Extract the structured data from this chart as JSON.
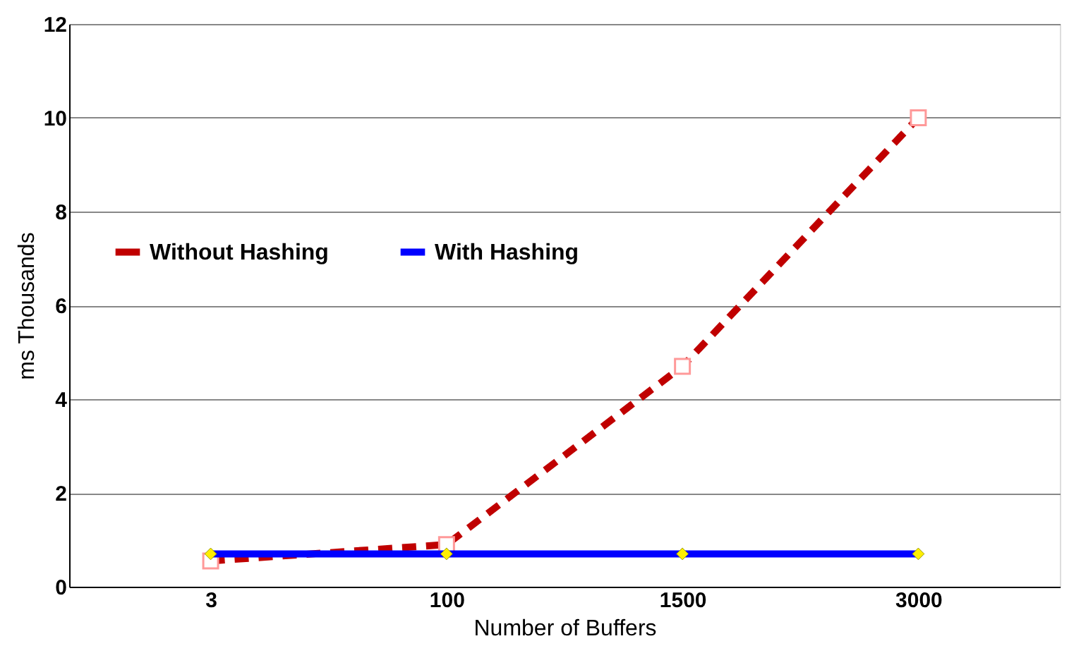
{
  "chart_data": {
    "type": "line",
    "xlabel": "Number of Buffers",
    "ylabel": "ms   Thousands",
    "categories": [
      "3",
      "100",
      "1500",
      "3000"
    ],
    "series": [
      {
        "name": "Without Hashing",
        "color": "#c00000",
        "values": [
          0.55,
          0.9,
          4.7,
          10.0
        ],
        "line_style": "dashed",
        "marker": "square"
      },
      {
        "name": "With Hashing",
        "color": "#0000ff",
        "values": [
          0.7,
          0.7,
          0.7,
          0.7
        ],
        "line_style": "solid",
        "marker": "diamond"
      }
    ],
    "ylim": [
      0,
      12
    ],
    "yticks": [
      0,
      2,
      4,
      6,
      8,
      10,
      12
    ],
    "grid": "y",
    "legend": "left"
  }
}
